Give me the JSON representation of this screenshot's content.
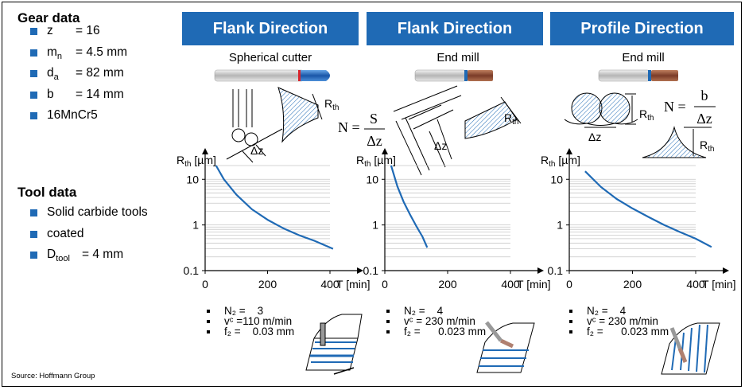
{
  "gear_data": {
    "title": "Gear data",
    "items": [
      {
        "key": "z",
        "sub": "",
        "value": "= 16"
      },
      {
        "key": "m",
        "sub": "n",
        "value": "= 4.5 mm"
      },
      {
        "key": "d",
        "sub": "a",
        "value": "= 82 mm"
      },
      {
        "key": "b",
        "sub": "",
        "value": "= 14 mm"
      },
      {
        "key": "16MnCr5",
        "sub": "",
        "value": ""
      }
    ]
  },
  "tool_data": {
    "title": "Tool data",
    "items": [
      {
        "text": "Solid carbide tools"
      },
      {
        "text": "coated"
      },
      {
        "key": "D",
        "sub": "tool",
        "value": "= 4 mm"
      }
    ]
  },
  "panels": [
    {
      "header": "Flank Direction",
      "tool": "Spherical cutter",
      "formula": "",
      "params": {
        "nz": "N₂ =    3",
        "vc": "vᶜ =110 m/min",
        "fz": "f₂ =    0.03 mm"
      }
    },
    {
      "header": "Flank Direction",
      "tool": "End mill",
      "formula_lhs": "N =",
      "formula_num": "S",
      "formula_den": "Δz",
      "params": {
        "nz": "N₂ =    4",
        "vc": "vᶜ = 230 m/min",
        "fz": "f₂ =      0.023 mm"
      }
    },
    {
      "header": "Profile Direction",
      "tool": "End mill",
      "formula_lhs": "N =",
      "formula_num": "b",
      "formula_den": "Δz",
      "params": {
        "nz": "N₂ =    4",
        "vc": "vᶜ = 230 m/min",
        "fz": "f₂ =      0.023 mm"
      }
    }
  ],
  "labels": {
    "rth": "R",
    "rth_sub": "th",
    "dz": "Δz",
    "y_unit": "[µm]",
    "x_unit": "T [min]"
  },
  "chart_data": [
    {
      "type": "line",
      "xlabel": "T [min]",
      "ylabel": "R_th [µm]",
      "yscale": "log",
      "xlim": [
        0,
        400
      ],
      "ylim": [
        0.1,
        20
      ],
      "x_ticks": [
        "0",
        "200",
        "400"
      ],
      "y_ticks": [
        "0.1",
        "1",
        "10"
      ],
      "x": [
        35,
        60,
        100,
        150,
        200,
        250,
        300,
        350,
        410
      ],
      "y": [
        20,
        10,
        4.6,
        2.2,
        1.3,
        0.85,
        0.6,
        0.45,
        0.3
      ]
    },
    {
      "type": "line",
      "xlabel": "T [min]",
      "ylabel": "R_th [µm]",
      "yscale": "log",
      "xlim": [
        0,
        400
      ],
      "ylim": [
        0.1,
        20
      ],
      "x_ticks": [
        "0",
        "200",
        "400"
      ],
      "y_ticks": [
        "0.1",
        "1",
        "10"
      ],
      "x": [
        20,
        40,
        60,
        80,
        100,
        120,
        135
      ],
      "y": [
        20,
        7,
        3.2,
        1.7,
        0.95,
        0.55,
        0.32
      ]
    },
    {
      "type": "line",
      "xlabel": "T [min]",
      "ylabel": "R_th [µm]",
      "yscale": "log",
      "xlim": [
        0,
        400
      ],
      "ylim": [
        0.1,
        20
      ],
      "x_ticks": [
        "0",
        "200",
        "400"
      ],
      "y_ticks": [
        "0.1",
        "1",
        "10"
      ],
      "x": [
        50,
        100,
        150,
        200,
        250,
        300,
        350,
        400,
        450
      ],
      "y": [
        15,
        6.8,
        3.7,
        2.3,
        1.5,
        1.0,
        0.7,
        0.5,
        0.33
      ]
    }
  ],
  "source": "Source: Hoffmann Group",
  "colors": {
    "accent": "#1f6ab5",
    "curve": "#1f6ab5",
    "grid": "#c8c8c8"
  }
}
